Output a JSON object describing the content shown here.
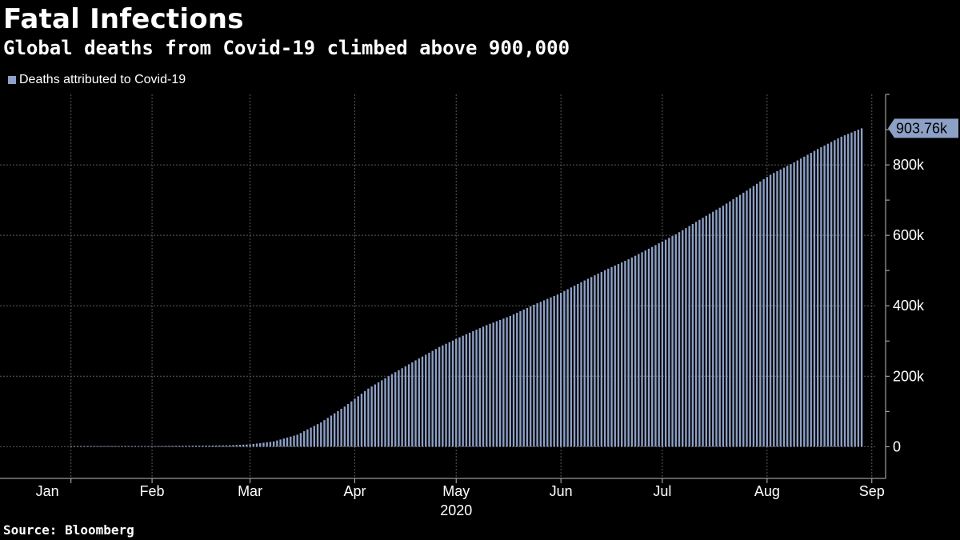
{
  "header": {
    "title": "Fatal Infections",
    "subtitle": "Global deaths from Covid-19 climbed above 900,000"
  },
  "footer": {
    "source": "Source: Bloomberg"
  },
  "colors": {
    "bar": "#8da0c6",
    "grid": "#5a5a5a",
    "axis": "#bfbfbf",
    "background": "#000000"
  },
  "chart_data": {
    "type": "bar",
    "series": [
      {
        "name": "Deaths attributed to Covid-19"
      }
    ],
    "x_start": "2020-01-01",
    "x_end": "2020-09-16",
    "x_year_label": "2020",
    "x_ticks": [
      {
        "date": "2020-01-15",
        "label": "Jan"
      },
      {
        "date": "2020-02-15",
        "label": "Feb"
      },
      {
        "date": "2020-03-15",
        "label": "Mar"
      },
      {
        "date": "2020-04-15",
        "label": "Apr"
      },
      {
        "date": "2020-05-15",
        "label": "May"
      },
      {
        "date": "2020-06-15",
        "label": "Jun"
      },
      {
        "date": "2020-07-15",
        "label": "Jul"
      },
      {
        "date": "2020-08-15",
        "label": "Aug"
      },
      {
        "date": "2020-09-15",
        "label": "Sep"
      }
    ],
    "x_gridlines": [
      "2020-01-22",
      "2020-02-15",
      "2020-03-15",
      "2020-04-15",
      "2020-05-15",
      "2020-06-15",
      "2020-07-15",
      "2020-08-15",
      "2020-09-15"
    ],
    "ylim": [
      -90000,
      1000000
    ],
    "y_ticks": [
      {
        "value": 0,
        "label": "0"
      },
      {
        "value": 200000,
        "label": "200k"
      },
      {
        "value": 400000,
        "label": "400k"
      },
      {
        "value": 600000,
        "label": "600k"
      },
      {
        "value": 800000,
        "label": "800k"
      }
    ],
    "y_minor_step": 100000,
    "grid": true,
    "legend_position": "top-left",
    "last_value_label": "903.76k",
    "points": [
      [
        "2020-01-22",
        17
      ],
      [
        "2020-01-31",
        213
      ],
      [
        "2020-02-10",
        1013
      ],
      [
        "2020-02-20",
        2247
      ],
      [
        "2020-03-01",
        3000
      ],
      [
        "2020-03-08",
        3800
      ],
      [
        "2020-03-15",
        6500
      ],
      [
        "2020-03-22",
        15000
      ],
      [
        "2020-03-29",
        34000
      ],
      [
        "2020-04-05",
        69000
      ],
      [
        "2020-04-12",
        114000
      ],
      [
        "2020-04-19",
        165000
      ],
      [
        "2020-04-26",
        206000
      ],
      [
        "2020-05-03",
        245000
      ],
      [
        "2020-05-10",
        283000
      ],
      [
        "2020-05-17",
        315000
      ],
      [
        "2020-05-24",
        345000
      ],
      [
        "2020-05-31",
        371000
      ],
      [
        "2020-06-07",
        403000
      ],
      [
        "2020-06-14",
        432000
      ],
      [
        "2020-06-21",
        467000
      ],
      [
        "2020-06-28",
        501000
      ],
      [
        "2020-07-05",
        532000
      ],
      [
        "2020-07-12",
        567000
      ],
      [
        "2020-07-19",
        603000
      ],
      [
        "2020-07-26",
        644000
      ],
      [
        "2020-08-02",
        684000
      ],
      [
        "2020-08-09",
        727000
      ],
      [
        "2020-08-16",
        772000
      ],
      [
        "2020-08-23",
        807000
      ],
      [
        "2020-08-30",
        845000
      ],
      [
        "2020-09-06",
        880000
      ],
      [
        "2020-09-12",
        903760
      ]
    ]
  }
}
